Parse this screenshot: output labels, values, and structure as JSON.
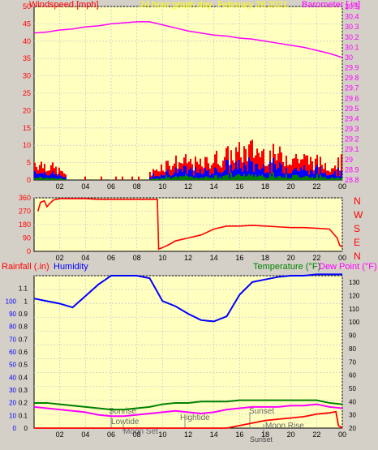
{
  "header": {
    "windspeed_label": "Windspeed [mph]",
    "title": "24 hour graph day",
    "date": "February 28 2021",
    "barometer_label": "Barometer [.in]"
  },
  "bottom_header": {
    "rainfall_label": "Rainfall (.in)",
    "humidity_label": "Humidity",
    "temperature_label": "Temperature (°F)",
    "dewpoint_label": "Dew Point (°F)"
  },
  "direction_labels": [
    "N",
    "W",
    "S",
    "E",
    "N"
  ],
  "annotations": {
    "sunrise": "Sunrise",
    "lowtide": "Lowtide",
    "moonset": "Moon Set",
    "hightide": "Hightide",
    "sunset_top": "Sunset",
    "moonrise": "Moon Rise",
    "sunset_bottom": "Sunset"
  },
  "colors": {
    "plot_bg": "#ffffc0",
    "wind_gust": "#ff0000",
    "wind_avg": "#0000ff",
    "wind_low": "#008000",
    "barometer": "#ff00ff",
    "direction": "#ff0000",
    "humidity": "#0000ff",
    "temperature": "#008000",
    "dewpoint": "#ff00ff",
    "rain": "#ff0000",
    "title_color": "#ffff00"
  },
  "chart_data": [
    {
      "type": "bar",
      "name": "wind",
      "x_ticks": [
        "02",
        "04",
        "06",
        "08",
        "10",
        "12",
        "14",
        "16",
        "18",
        "20",
        "22",
        "00"
      ],
      "x_range_hours": [
        0,
        24
      ],
      "y_ticks": [
        "0",
        "5",
        "10",
        "15",
        "20",
        "25",
        "30",
        "35",
        "40",
        "45",
        "50"
      ],
      "ylim": [
        0,
        50
      ],
      "y2_ticks": [
        "28.8",
        "28.9",
        "29",
        "29.1",
        "29.2",
        "29.3",
        "29.4",
        "29.5",
        "29.6",
        "29.7",
        "29.8",
        "29.9",
        "30",
        "30.1",
        "30.2",
        "30.3",
        "30.4",
        "30.5"
      ],
      "y2lim": [
        28.8,
        30.5
      ],
      "barometer": {
        "x": [
          0,
          1,
          2,
          3,
          4,
          5,
          6,
          7,
          8,
          9,
          10,
          11,
          12,
          13,
          14,
          15,
          16,
          17,
          18,
          19,
          20,
          21,
          22,
          23,
          24
        ],
        "y": [
          30.24,
          30.25,
          30.27,
          30.28,
          30.3,
          30.31,
          30.33,
          30.34,
          30.35,
          30.35,
          30.32,
          30.29,
          30.26,
          30.24,
          30.22,
          30.21,
          30.19,
          30.18,
          30.16,
          30.14,
          30.12,
          30.1,
          30.07,
          30.04,
          30.0
        ]
      },
      "gust_profile": {
        "x": [
          0,
          1,
          2,
          3,
          4,
          5,
          6,
          7,
          8,
          9,
          10,
          11,
          12,
          13,
          14,
          15,
          16,
          17,
          18,
          19,
          20,
          21,
          22,
          23,
          24
        ],
        "y": [
          6,
          5,
          3,
          1,
          1,
          1,
          1,
          1,
          1,
          2,
          5,
          6,
          6,
          5,
          7,
          8,
          9,
          10,
          9,
          8,
          8,
          7,
          6,
          5,
          6
        ]
      }
    },
    {
      "type": "line",
      "name": "wind_direction",
      "y_ticks": [
        "0",
        "90",
        "180",
        "270",
        "360"
      ],
      "ylim": [
        0,
        360
      ],
      "x": [
        0.3,
        0.5,
        0.8,
        1.0,
        1.2,
        1.5,
        2,
        3,
        4,
        5,
        6,
        7,
        8,
        9,
        9.6,
        9.7,
        10,
        10.5,
        11,
        11.5,
        12,
        13,
        14,
        15,
        16,
        17,
        18,
        19,
        20,
        21,
        22,
        23,
        23.6,
        23.8,
        24
      ],
      "y": [
        270,
        330,
        340,
        300,
        320,
        345,
        355,
        355,
        355,
        350,
        350,
        350,
        350,
        350,
        350,
        15,
        25,
        45,
        70,
        80,
        90,
        110,
        150,
        170,
        170,
        175,
        170,
        165,
        160,
        160,
        155,
        150,
        90,
        40,
        30
      ]
    },
    {
      "type": "line",
      "name": "weather",
      "y_ticks": [
        "0",
        "0.1",
        "0.2",
        "0.3",
        "0.4",
        "0.5",
        "0.6",
        "0.7",
        "0.8",
        "0.9",
        "1",
        "1.1"
      ],
      "ylim": [
        0,
        1.2
      ],
      "y2_ticks": [
        "20",
        "30",
        "40",
        "50",
        "60",
        "70",
        "80",
        "90",
        "100",
        "110",
        "120",
        "130"
      ],
      "y2lim": [
        20,
        135
      ],
      "humidity": {
        "x": [
          0,
          1,
          2,
          3,
          4,
          5,
          6,
          7,
          8,
          9,
          10,
          11,
          12,
          13,
          14,
          15,
          16,
          17,
          18,
          19,
          20,
          21,
          22,
          23,
          24
        ],
        "y": [
          102,
          100,
          98,
          95,
          104,
          113,
          120,
          120,
          120,
          118,
          100,
          96,
          90,
          85,
          84,
          88,
          105,
          115,
          117,
          119,
          120,
          120,
          121,
          121,
          121
        ]
      },
      "temperature": {
        "x": [
          0,
          1,
          2,
          3,
          4,
          5,
          6,
          7,
          8,
          9,
          10,
          11,
          12,
          13,
          14,
          15,
          16,
          17,
          18,
          19,
          20,
          21,
          22,
          23,
          24
        ],
        "y": [
          39,
          39,
          38,
          37,
          36,
          35,
          34,
          34,
          35,
          36,
          38,
          39,
          39,
          40,
          40,
          40,
          41,
          41,
          41,
          41,
          41,
          41,
          41,
          39,
          38
        ]
      },
      "dewpoint": {
        "x": [
          0,
          1,
          2,
          3,
          4,
          5,
          6,
          7,
          8,
          9,
          10,
          11,
          12,
          13,
          14,
          15,
          16,
          17,
          18,
          19,
          20,
          21,
          22,
          23,
          24
        ],
        "y": [
          36,
          35,
          34,
          33,
          32,
          30,
          29,
          29,
          30,
          31,
          32,
          33,
          32,
          31,
          32,
          34,
          35,
          36,
          36,
          36,
          37,
          37,
          38,
          36,
          35
        ]
      },
      "rainfall": {
        "x": [
          0,
          15,
          16,
          17,
          18,
          19,
          20,
          21,
          22,
          23,
          23.5,
          23.7,
          24
        ],
        "y": [
          0,
          0,
          0.02,
          0.04,
          0.06,
          0.07,
          0.08,
          0.09,
          0.11,
          0.12,
          0.13,
          0.02,
          0.0
        ]
      }
    }
  ]
}
